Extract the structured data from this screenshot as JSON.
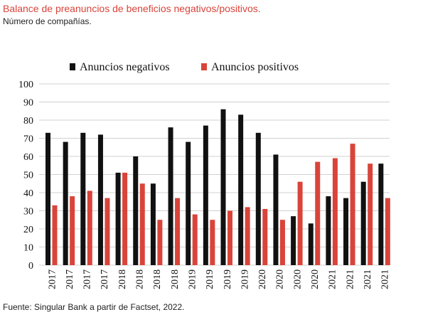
{
  "header": {
    "title": "Balance de preanuncios de beneficios negativos/positivos.",
    "subtitle": "Número de compañías."
  },
  "footer": {
    "source": "Fuente: Singular Bank a partir de Factset, 2022."
  },
  "colors": {
    "negative": "#111111",
    "positive": "#d9443a",
    "title": "#d9443a"
  },
  "chart_data": {
    "type": "bar",
    "title": "Balance de preanuncios de beneficios negativos/positivos.",
    "subtitle": "Número de compañías.",
    "xlabel": "",
    "ylabel": "",
    "ylim": [
      0,
      100
    ],
    "yticks": [
      0,
      10,
      20,
      30,
      40,
      50,
      60,
      70,
      80,
      90,
      100
    ],
    "grid": true,
    "legend_position": "top",
    "categories": [
      "2017",
      "2017",
      "2017",
      "2017",
      "2018",
      "2018",
      "2018",
      "2018",
      "2019",
      "2019",
      "2019",
      "2019",
      "2020",
      "2020",
      "2020",
      "2020",
      "2021",
      "2021",
      "2021",
      "2021"
    ],
    "series": [
      {
        "name": "Anuncios negativos",
        "color": "#111111",
        "values": [
          73,
          68,
          73,
          72,
          51,
          60,
          45,
          76,
          68,
          77,
          86,
          83,
          73,
          61,
          27,
          23,
          38,
          37,
          46,
          56
        ]
      },
      {
        "name": "Anuncios positivos",
        "color": "#d9443a",
        "values": [
          33,
          38,
          41,
          37,
          51,
          45,
          25,
          37,
          28,
          25,
          30,
          32,
          31,
          25,
          46,
          57,
          59,
          67,
          56,
          37
        ]
      }
    ]
  }
}
